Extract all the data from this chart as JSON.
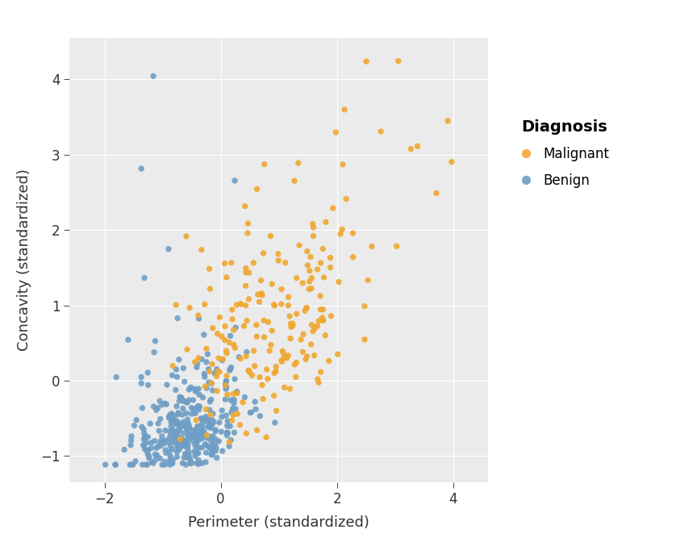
{
  "title": "",
  "xlabel": "Perimeter (standardized)",
  "ylabel": "Concavity (standardized)",
  "legend_title": "Diagnosis",
  "legend_labels": [
    "Malignant",
    "Benign"
  ],
  "malignant_color": "#F0A830",
  "benign_color": "#6E9EC5",
  "panel_background": "#EBEBEB",
  "figure_background": "#FFFFFF",
  "grid_color": "#FFFFFF",
  "alpha": 0.9,
  "point_size": 28,
  "xlim": [
    -2.6,
    4.6
  ],
  "ylim": [
    -1.35,
    4.55
  ],
  "xticks": [
    -2,
    0,
    2,
    4
  ],
  "yticks": [
    -1,
    0,
    1,
    2,
    3,
    4
  ],
  "xlabel_fontsize": 13,
  "ylabel_fontsize": 13,
  "tick_fontsize": 12,
  "legend_title_fontsize": 14,
  "legend_fontsize": 12
}
